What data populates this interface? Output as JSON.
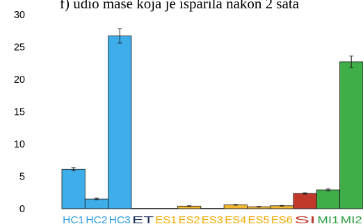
{
  "chart_data": {
    "type": "bar",
    "title": "f) udio mase koja je isparila nakon 2 sata",
    "xlabel": "",
    "ylabel": "",
    "ylim": [
      0,
      30
    ],
    "yticks": [
      0,
      5,
      10,
      15,
      20,
      25,
      30
    ],
    "grid": false,
    "legend": "none",
    "error_bars": true,
    "categories": [
      "HC1",
      "HC2",
      "HC3",
      "ET",
      "ES1",
      "ES2",
      "ES3",
      "ES4",
      "ES5",
      "ES6",
      "SI",
      "MI1",
      "MI2"
    ],
    "values": [
      6.1,
      1.5,
      26.7,
      0.05,
      0.05,
      0.4,
      0.05,
      0.6,
      0.3,
      0.45,
      2.35,
      2.9,
      22.7
    ],
    "errors": [
      0.25,
      0.12,
      1.1,
      0,
      0,
      0.05,
      0,
      0.05,
      0.05,
      0.05,
      0.1,
      0.15,
      0.9
    ],
    "colors": [
      "#3daee9",
      "#3daee9",
      "#3daee9",
      "#1f3c7a",
      "#f2b72f",
      "#f2b72f",
      "#f2b72f",
      "#f2b72f",
      "#f2b72f",
      "#f2b72f",
      "#c0392b",
      "#3fae49",
      "#3fae49"
    ],
    "label_colors": [
      "#2e9de6",
      "#2e9de6",
      "#2e9de6",
      "#1f2e5a",
      "#f0ab00",
      "#f0ab00",
      "#f0ab00",
      "#f0ab00",
      "#f0ab00",
      "#f0ab00",
      "#c0392b",
      "#2f9e44",
      "#2f9e44"
    ]
  }
}
